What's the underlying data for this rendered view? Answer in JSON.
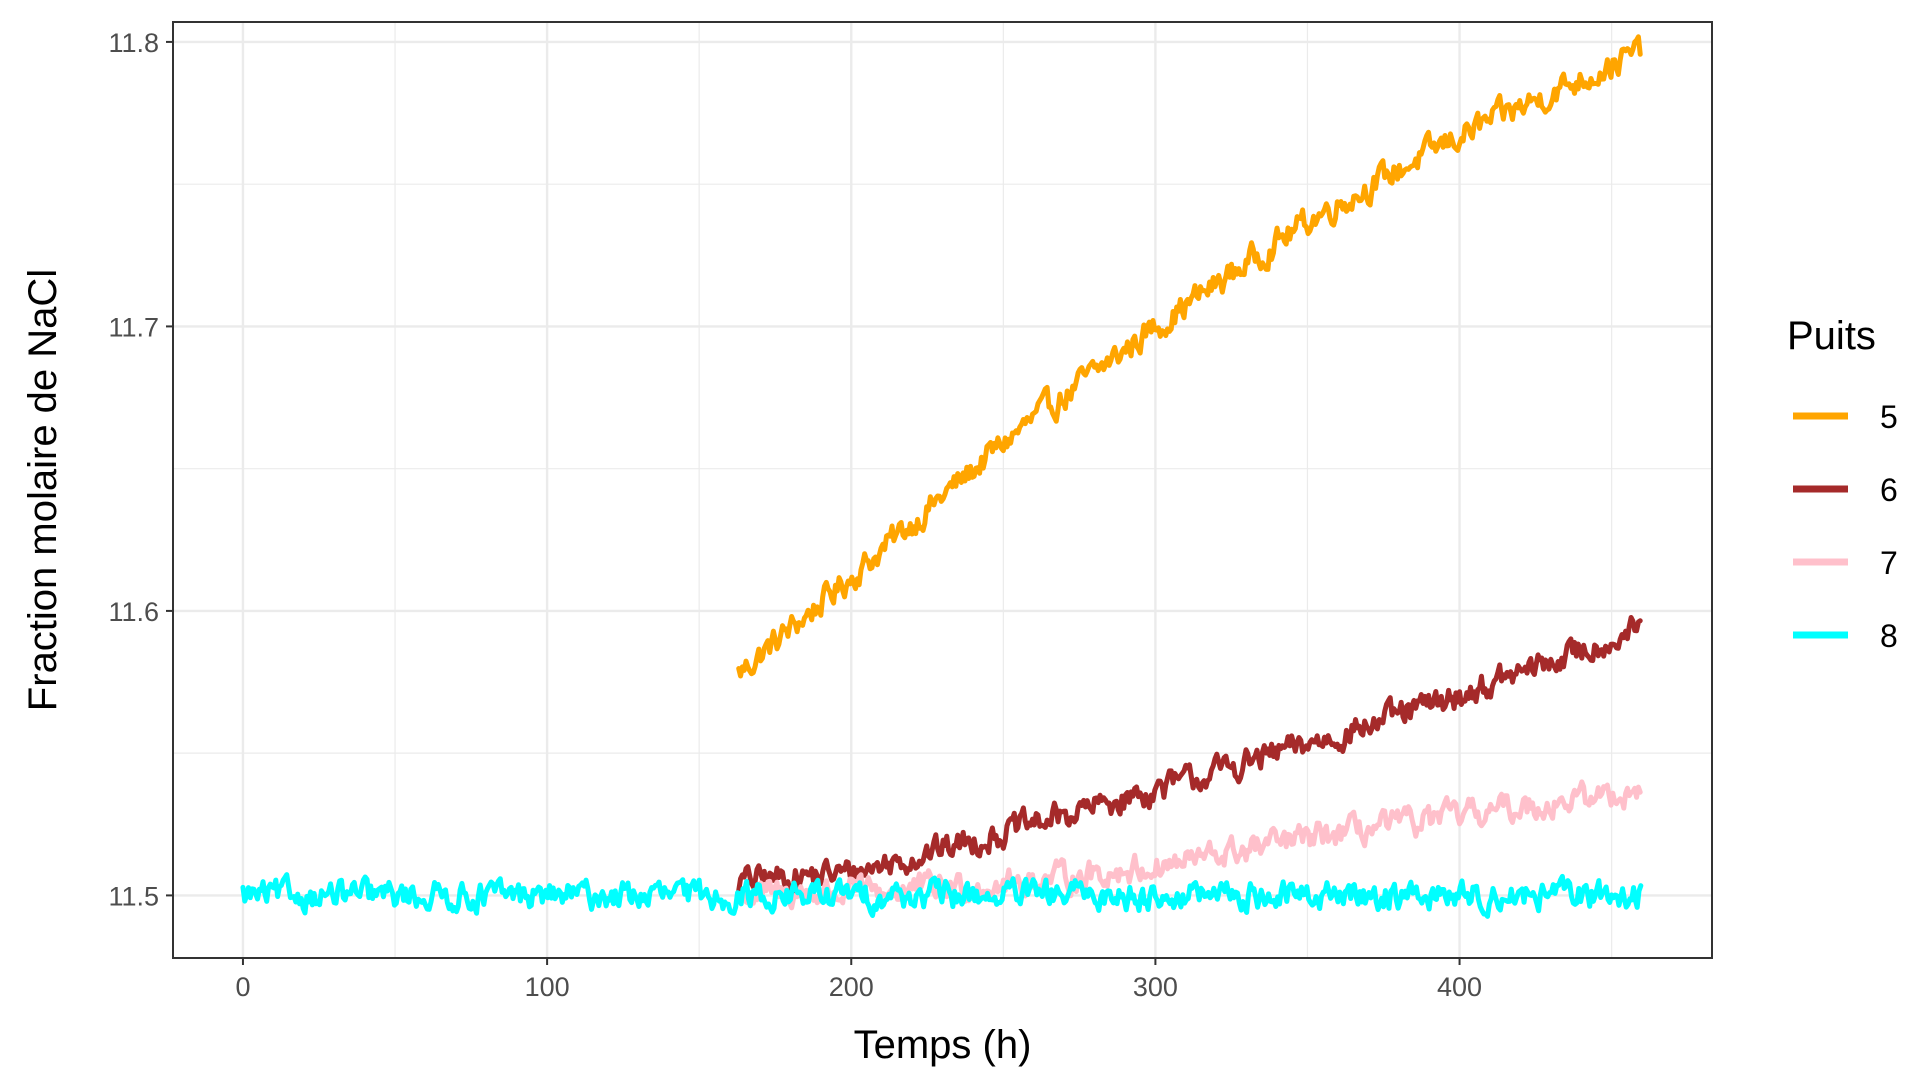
{
  "chart_data": {
    "type": "line",
    "title": "",
    "xlabel": "Temps (h)",
    "ylabel": "Fraction molaire de NaCl",
    "xlim": [
      -23,
      483
    ],
    "ylim": [
      11.478,
      11.807
    ],
    "x_ticks": [
      0,
      100,
      200,
      300,
      400
    ],
    "x_tick_labels": [
      "0",
      "100",
      "200",
      "300",
      "400"
    ],
    "y_ticks": [
      11.5,
      11.6,
      11.7,
      11.8
    ],
    "y_tick_labels": [
      "11.5",
      "11.6",
      "11.7",
      "11.8"
    ],
    "x_minor_ticks": [
      50,
      150,
      250,
      350,
      450
    ],
    "y_minor_ticks": [
      11.55,
      11.65,
      11.75
    ],
    "grid": true,
    "theme": "bw",
    "legend_title": "Puits",
    "legend_position": "right",
    "noise_amplitude": 0.0045,
    "series": [
      {
        "name": "5",
        "color": "#FFA500",
        "x": [
          163,
          200,
          250,
          300,
          350,
          400,
          460
        ],
        "y": [
          11.578,
          11.612,
          11.659,
          11.7,
          11.737,
          11.767,
          11.797
        ]
      },
      {
        "name": "6",
        "color": "#A52A2A",
        "x": [
          163,
          200,
          250,
          300,
          350,
          400,
          460
        ],
        "y": [
          11.505,
          11.508,
          11.522,
          11.537,
          11.553,
          11.57,
          11.594
        ]
      },
      {
        "name": "7",
        "color": "#FFC0CB",
        "x": [
          163,
          200,
          250,
          300,
          350,
          400,
          460
        ],
        "y": [
          11.5,
          11.501,
          11.504,
          11.51,
          11.52,
          11.528,
          11.537
        ]
      },
      {
        "name": "8",
        "color": "#00FFFF",
        "x": [
          0,
          100,
          200,
          300,
          400,
          460
        ],
        "y": [
          11.5,
          11.5,
          11.5,
          11.5,
          11.5,
          11.5
        ]
      }
    ]
  }
}
